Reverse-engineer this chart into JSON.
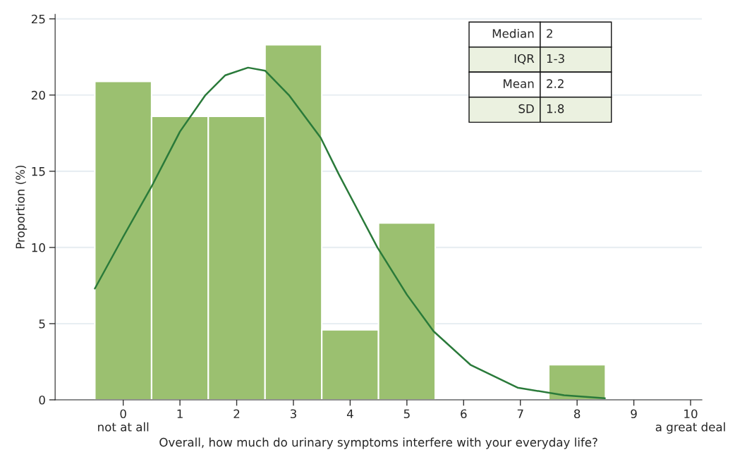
{
  "chart_data": {
    "type": "histogram",
    "xlabel": "Overall, how much do urinary symptoms interfere with your everyday life?",
    "ylabel": "Proportion (%)",
    "bins": [
      -0.5,
      0.5,
      1.5,
      2.5,
      3.5,
      4.5,
      5.5,
      6.5,
      7.5,
      8.5
    ],
    "values": [
      20.9,
      18.6,
      18.6,
      23.3,
      4.6,
      11.6,
      0,
      0,
      2.3
    ],
    "color": "#9bc070",
    "series": [
      {
        "type": "line",
        "color": "#2a7a3a",
        "x": [
          -0.5,
          0,
          0.5,
          1,
          1.45,
          1.8,
          2.2,
          2.5,
          2.92,
          3.48,
          3.8,
          4.48,
          5,
          5.47,
          6.12,
          6.95,
          7.77,
          8.49
        ],
        "values": [
          7.3,
          10.7,
          14.0,
          17.6,
          20.0,
          21.3,
          21.8,
          21.6,
          20.0,
          17.2,
          14.8,
          10.0,
          6.9,
          4.5,
          2.3,
          0.8,
          0.3,
          0.1
        ]
      }
    ],
    "xlim": [
      -1.2,
      10.2
    ],
    "ylim": [
      0,
      25.3
    ],
    "xticks": [
      {
        "value": 0,
        "label": "0\nnot at all"
      },
      1,
      2,
      3,
      4,
      5,
      6,
      7,
      8,
      9,
      {
        "value": 10,
        "label": "10\na great deal"
      }
    ],
    "yticks": [
      0,
      5,
      10,
      15,
      20,
      25
    ],
    "grid": "y",
    "annotations": [
      "Median",
      "2",
      "IQR",
      "1-3",
      "Mean",
      "2.2",
      "SD",
      "1.8"
    ]
  }
}
